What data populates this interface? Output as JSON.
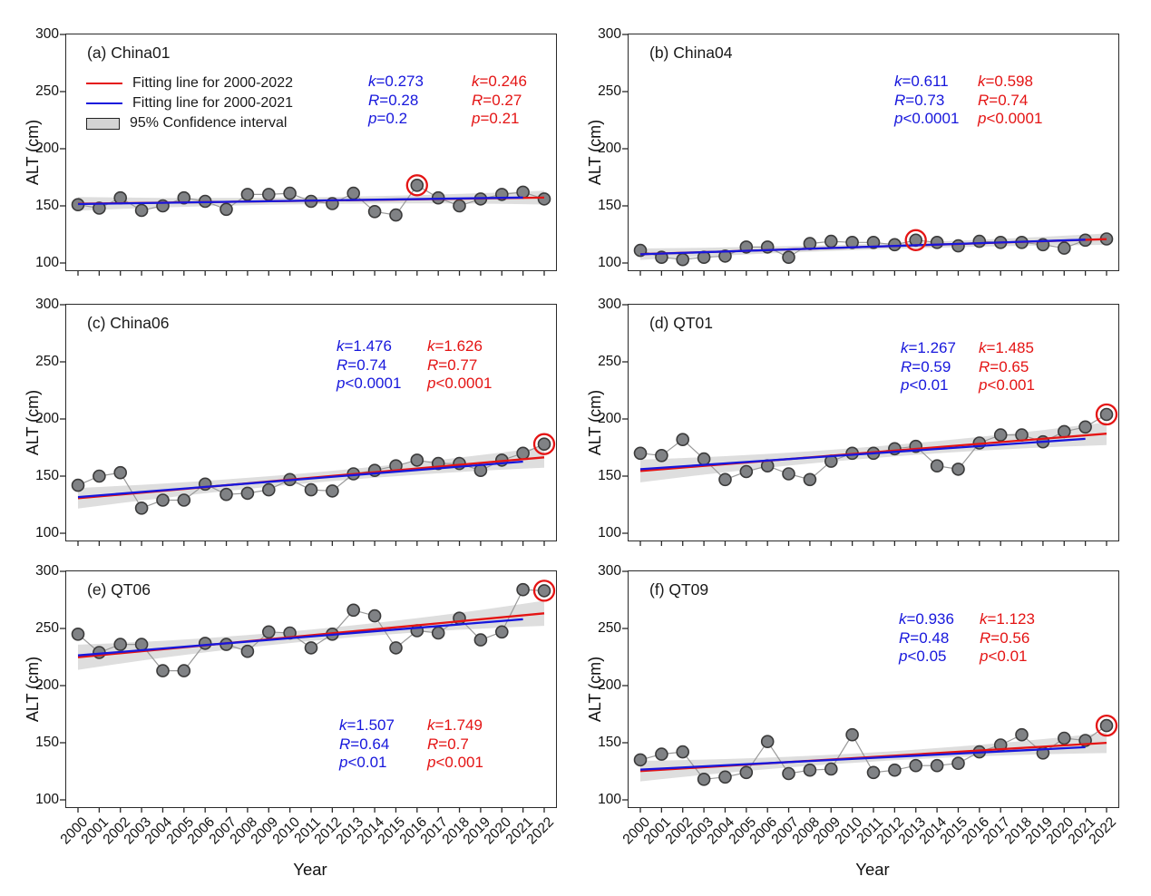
{
  "chart_data": {
    "type": "scatter",
    "description": "Six-panel time series of active layer thickness (ALT) with linear fits and confidence bands",
    "xlabel": "Year",
    "ylabel": "ALT (cm)",
    "x": [
      2000,
      2001,
      2002,
      2003,
      2004,
      2005,
      2006,
      2007,
      2008,
      2009,
      2010,
      2011,
      2012,
      2013,
      2014,
      2015,
      2016,
      2017,
      2018,
      2019,
      2020,
      2021,
      2022
    ],
    "ylim": [
      100,
      300
    ],
    "yticks": [
      300,
      250,
      200,
      150,
      100
    ],
    "colors": {
      "red_fit": "#e41414",
      "blue_fit": "#1717dc",
      "point_fill": "#808285",
      "point_stroke": "#3a3a3a",
      "connect_line": "#999999",
      "ci_fill": "#c2c2c2",
      "frame": "#2a2a2a"
    },
    "legend": [
      {
        "label": "Fitting line for 2000-2022",
        "swatch": "line",
        "color": "#e41414"
      },
      {
        "label": "Fitting line for 2000-2021",
        "swatch": "line",
        "color": "#1717dc"
      },
      {
        "label": "95% Confidence interval",
        "swatch": "box",
        "color": "#d4d4d4"
      }
    ],
    "panels": [
      {
        "label": "(a) China01",
        "site": "China01",
        "values": [
          151,
          148,
          157,
          146,
          150,
          157,
          154,
          147,
          160,
          160,
          161,
          154,
          152,
          161,
          145,
          142,
          168,
          157,
          150,
          156,
          160,
          162,
          156
        ],
        "circled_year": 2016,
        "ci": {
          "end": 6,
          "mid": 3
        },
        "fit_blue": {
          "period": "2000-2021",
          "slope": 0.273,
          "stats": [
            {
              "sym": "k",
              "rest": "=0.273"
            },
            {
              "sym": "R",
              "rest": "=0.28"
            },
            {
              "sym": "p",
              "rest": "=0.2"
            }
          ]
        },
        "fit_red": {
          "period": "2000-2022",
          "slope": 0.246,
          "stats": [
            {
              "sym": "k",
              "rest": "=0.246"
            },
            {
              "sym": "R",
              "rest": "=0.27"
            },
            {
              "sym": "p",
              "rest": "=0.21"
            }
          ]
        }
      },
      {
        "label": "(b) China04",
        "site": "China04",
        "values": [
          111,
          105,
          103,
          105,
          106,
          114,
          114,
          105,
          117,
          119,
          118,
          118,
          116,
          120,
          118,
          115,
          119,
          118,
          118,
          116,
          113,
          120,
          121
        ],
        "circled_year": 2013,
        "ci": {
          "end": 5,
          "mid": 2.5
        },
        "fit_blue": {
          "period": "2000-2021",
          "slope": 0.611,
          "stats": [
            {
              "sym": "k",
              "rest": "=0.611"
            },
            {
              "sym": "R",
              "rest": "=0.73"
            },
            {
              "sym": "p",
              "rest": "<0.0001"
            }
          ]
        },
        "fit_red": {
          "period": "2000-2022",
          "slope": 0.598,
          "stats": [
            {
              "sym": "k",
              "rest": "=0.598"
            },
            {
              "sym": "R",
              "rest": "=0.74"
            },
            {
              "sym": "p",
              "rest": "<0.0001"
            }
          ]
        }
      },
      {
        "label": "(c) China06",
        "site": "China06",
        "values": [
          142,
          150,
          153,
          122,
          129,
          129,
          143,
          134,
          135,
          138,
          147,
          138,
          137,
          152,
          155,
          159,
          164,
          161,
          161,
          155,
          164,
          170,
          178
        ],
        "circled_year": 2022,
        "ci": {
          "end": 9,
          "mid": 4.5
        },
        "fit_blue": {
          "period": "2000-2021",
          "slope": 1.476,
          "stats": [
            {
              "sym": "k",
              "rest": "=1.476"
            },
            {
              "sym": "R",
              "rest": "=0.74"
            },
            {
              "sym": "p",
              "rest": "<0.0001"
            }
          ]
        },
        "fit_red": {
          "period": "2000-2022",
          "slope": 1.626,
          "stats": [
            {
              "sym": "k",
              "rest": "=1.626"
            },
            {
              "sym": "R",
              "rest": "=0.77"
            },
            {
              "sym": "p",
              "rest": "<0.0001"
            }
          ]
        }
      },
      {
        "label": "(d) QT01",
        "site": "QT01",
        "values": [
          170,
          168,
          182,
          165,
          147,
          154,
          159,
          152,
          147,
          163,
          170,
          170,
          174,
          176,
          159,
          156,
          179,
          186,
          186,
          180,
          189,
          193,
          204
        ],
        "circled_year": 2022,
        "ci": {
          "end": 10,
          "mid": 5
        },
        "fit_blue": {
          "period": "2000-2021",
          "slope": 1.267,
          "stats": [
            {
              "sym": "k",
              "rest": "=1.267"
            },
            {
              "sym": "R",
              "rest": "=0.59"
            },
            {
              "sym": "p",
              "rest": "<0.01"
            }
          ]
        },
        "fit_red": {
          "period": "2000-2022",
          "slope": 1.485,
          "stats": [
            {
              "sym": "k",
              "rest": "=1.485"
            },
            {
              "sym": "R",
              "rest": "=0.65"
            },
            {
              "sym": "p",
              "rest": "<0.001"
            }
          ]
        }
      },
      {
        "label": "(e) QT06",
        "site": "QT06",
        "values": [
          245,
          229,
          236,
          236,
          213,
          213,
          237,
          236,
          230,
          247,
          246,
          233,
          245,
          266,
          261,
          233,
          248,
          246,
          259,
          240,
          247,
          284,
          283
        ],
        "circled_year": 2022,
        "ci": {
          "end": 11,
          "mid": 5
        },
        "fit_blue": {
          "period": "2000-2021",
          "slope": 1.507,
          "stats": [
            {
              "sym": "k",
              "rest": "=1.507"
            },
            {
              "sym": "R",
              "rest": "=0.64"
            },
            {
              "sym": "p",
              "rest": "<0.01"
            }
          ]
        },
        "fit_red": {
          "period": "2000-2022",
          "slope": 1.749,
          "stats": [
            {
              "sym": "k",
              "rest": "=1.749"
            },
            {
              "sym": "R",
              "rest": "=0.7"
            },
            {
              "sym": "p",
              "rest": "<0.001"
            }
          ]
        }
      },
      {
        "label": "(f) QT09",
        "site": "QT09",
        "values": [
          135,
          140,
          142,
          118,
          120,
          124,
          151,
          123,
          126,
          127,
          157,
          124,
          126,
          130,
          130,
          132,
          142,
          148,
          157,
          141,
          154,
          152,
          165
        ],
        "circled_year": 2022,
        "ci": {
          "end": 9,
          "mid": 4
        },
        "fit_blue": {
          "period": "2000-2021",
          "slope": 0.936,
          "stats": [
            {
              "sym": "k",
              "rest": "=0.936"
            },
            {
              "sym": "R",
              "rest": "=0.48"
            },
            {
              "sym": "p",
              "rest": "<0.05"
            }
          ]
        },
        "fit_red": {
          "period": "2000-2022",
          "slope": 1.123,
          "stats": [
            {
              "sym": "k",
              "rest": "=1.123"
            },
            {
              "sym": "R",
              "rest": "=0.56"
            },
            {
              "sym": "p",
              "rest": "<0.01"
            }
          ]
        }
      }
    ]
  }
}
